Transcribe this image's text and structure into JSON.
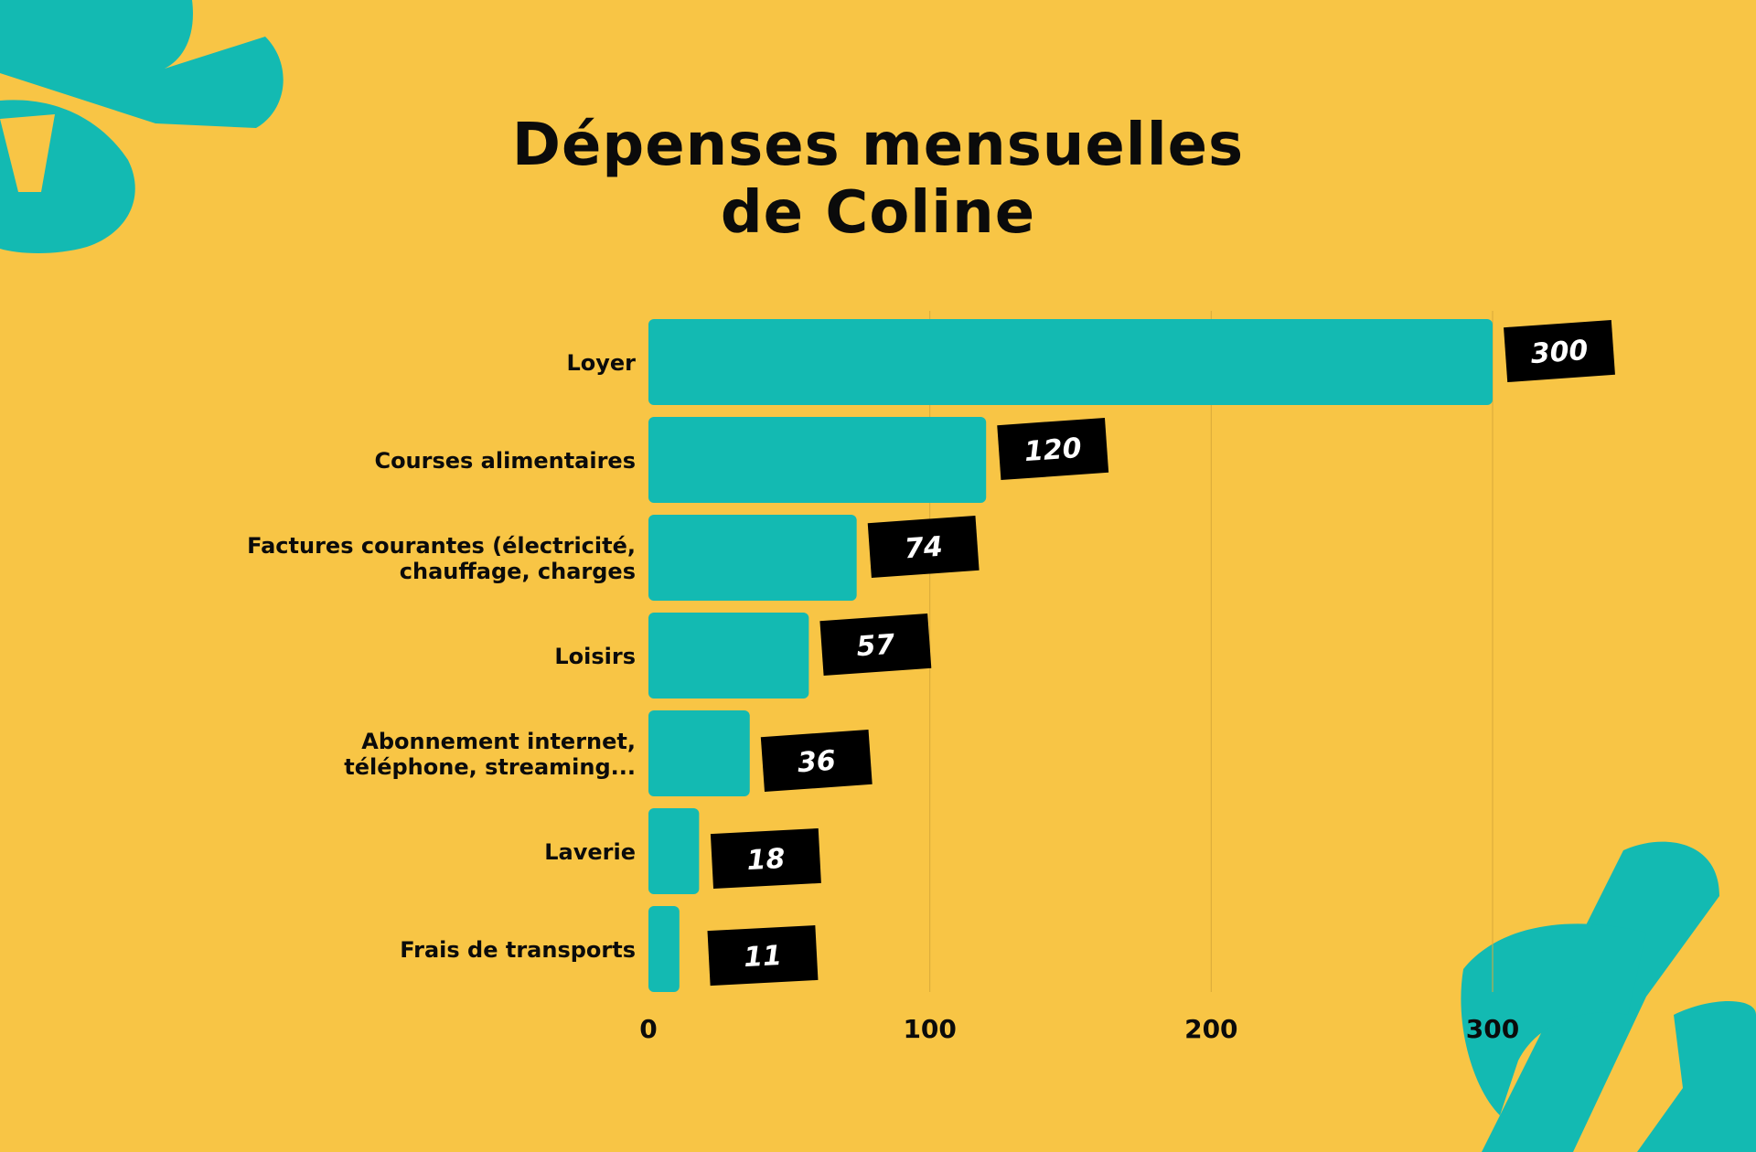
{
  "colors": {
    "background": "#F8C545",
    "bar": "#13BAB2",
    "decoration": "#13BAB2",
    "label_box": "#000000",
    "label_text": "#FFFFFF",
    "text": "#0B0B0B",
    "grid": "#D9A93A"
  },
  "chart_data": {
    "type": "bar",
    "orientation": "horizontal",
    "title_lines": [
      "Dépenses mensuelles",
      "de Coline"
    ],
    "categories": [
      [
        "Loyer"
      ],
      [
        "Courses alimentaires"
      ],
      [
        "Factures courantes (électricité,",
        "chauffage, charges"
      ],
      [
        "Loisirs"
      ],
      [
        "Abonnement internet,",
        "téléphone, streaming..."
      ],
      [
        "Laverie"
      ],
      [
        "Frais de transports"
      ]
    ],
    "values": [
      300,
      120,
      74,
      57,
      36,
      18,
      11
    ],
    "data_labels": [
      "300",
      "120",
      "74",
      "57",
      "36",
      "18",
      "11"
    ],
    "xlim": [
      0,
      300
    ],
    "xticks": [
      "0",
      "100",
      "200",
      "300"
    ],
    "xtick_values": [
      0,
      100,
      200,
      300
    ],
    "grid": true,
    "legend": "none"
  }
}
